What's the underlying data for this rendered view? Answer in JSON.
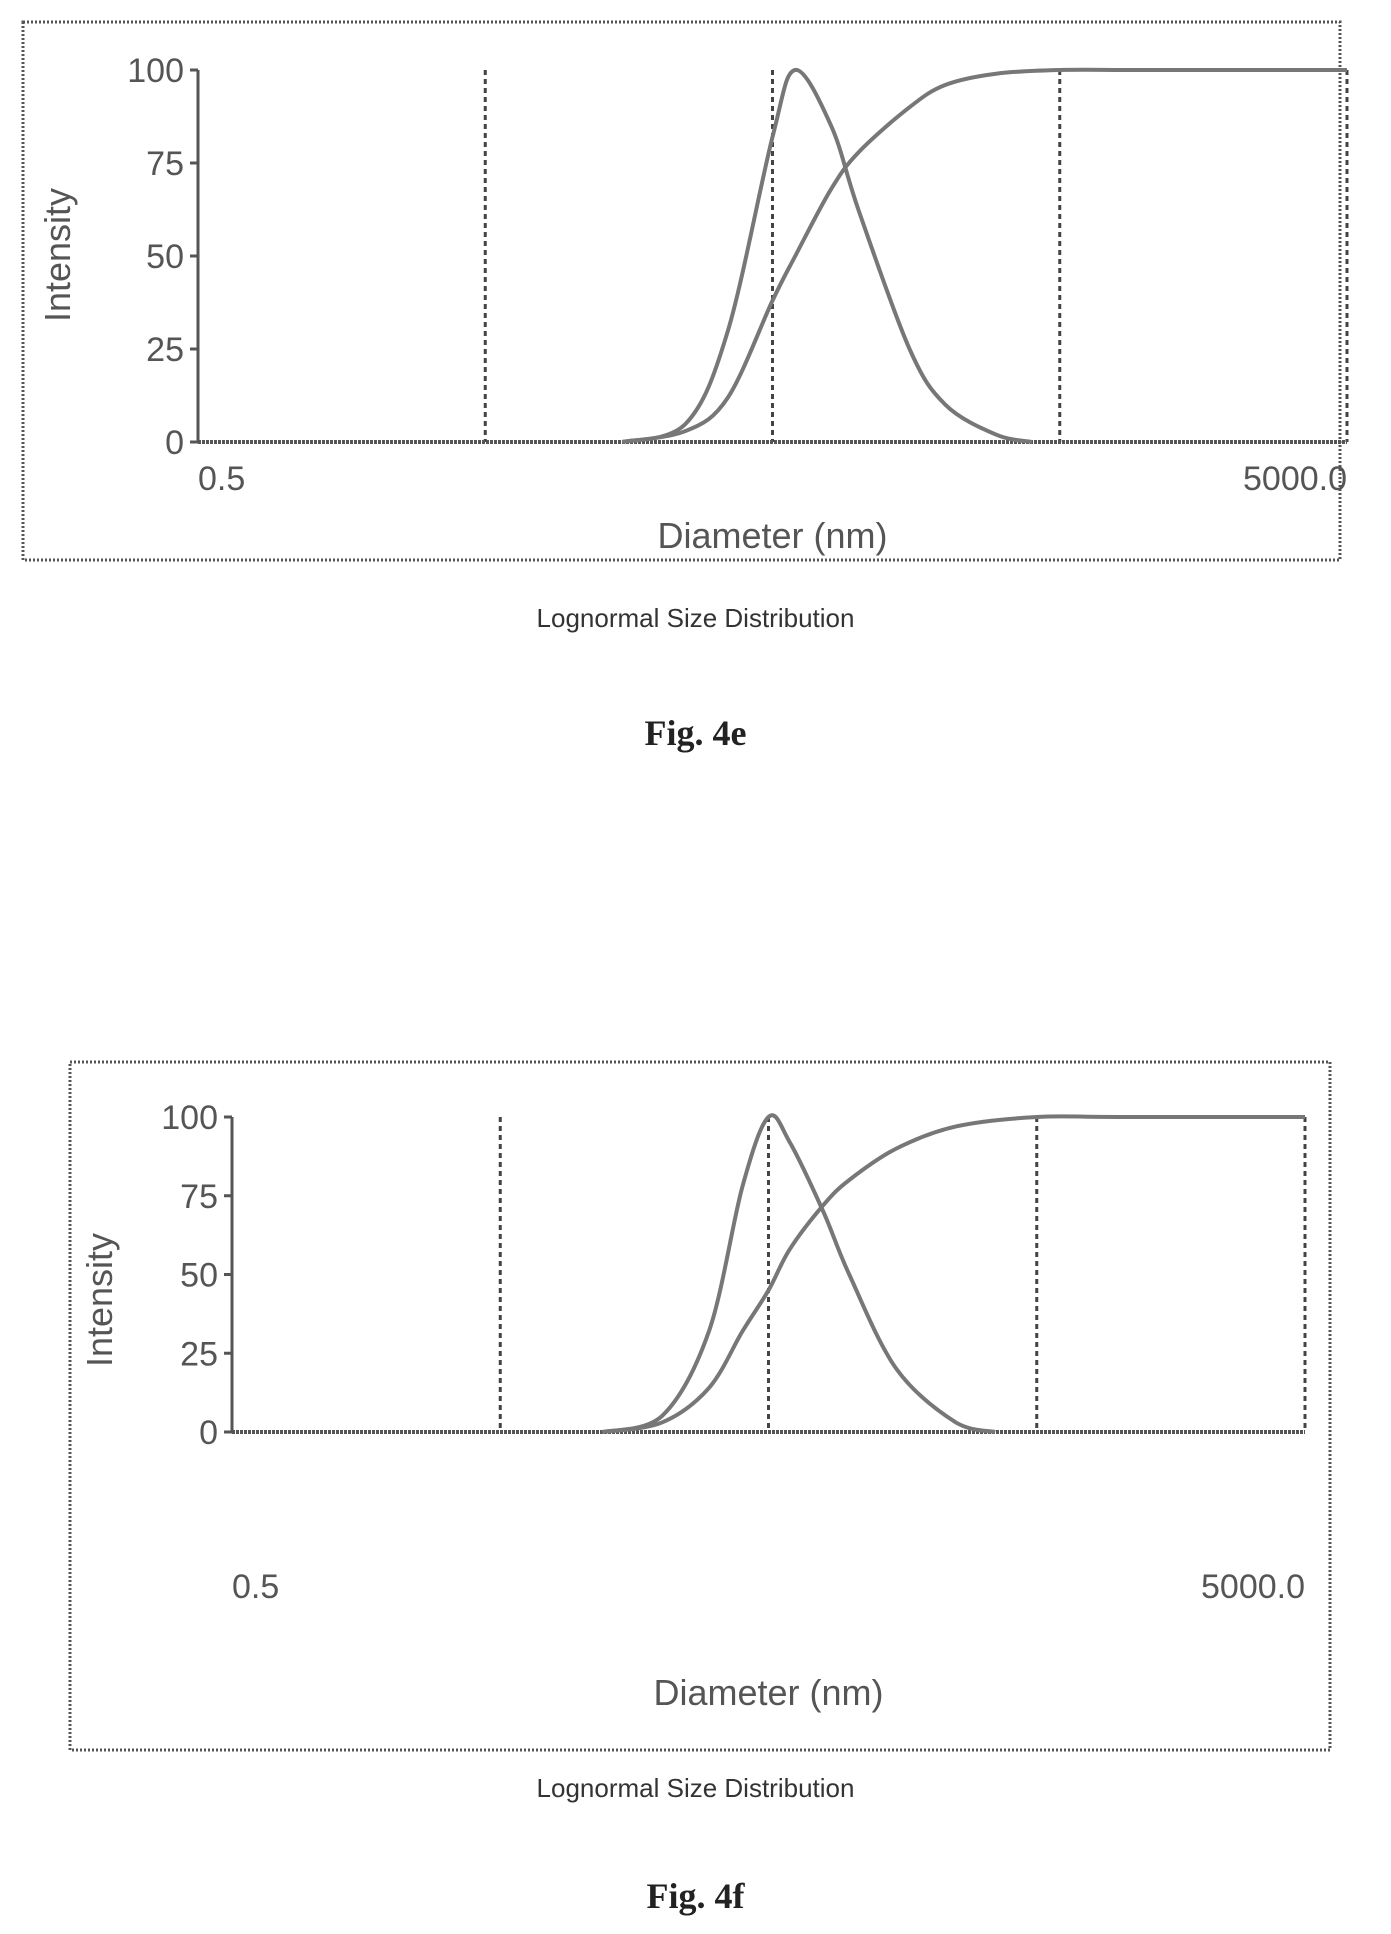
{
  "figures": [
    {
      "caption": "Fig. 4e",
      "subtitle": "Lognormal Size Distribution"
    },
    {
      "caption": "Fig. 4f",
      "subtitle": "Lognormal Size Distribution"
    }
  ],
  "chart_data": [
    {
      "type": "line",
      "xlabel": "Diameter (nm)",
      "ylabel": "Intensity",
      "x_scale": "log",
      "xlim": [
        0.5,
        5000.0
      ],
      "ylim": [
        0,
        100
      ],
      "x_tick_labels": [
        "0.5",
        "5000.0"
      ],
      "y_ticks": [
        0,
        25,
        50,
        75,
        100
      ],
      "y_tick_labels": [
        "0",
        "25",
        "50",
        "75",
        "100"
      ],
      "gridlines_x": [
        5,
        50,
        500,
        5000
      ],
      "grid": true,
      "series": [
        {
          "x": [
            15,
            25,
            35,
            50,
            60,
            80,
            100,
            150,
            200,
            300,
            400
          ],
          "y": [
            0,
            5,
            30,
            82,
            100,
            85,
            62,
            25,
            10,
            2,
            0
          ]
        },
        {
          "x": [
            15,
            25,
            35,
            50,
            60,
            80,
            100,
            150,
            200,
            300,
            500,
            1000,
            5000
          ],
          "y": [
            0,
            3,
            12,
            38,
            50,
            68,
            78,
            90,
            96,
            99,
            100,
            100,
            100
          ]
        }
      ]
    },
    {
      "type": "line",
      "xlabel": "Diameter (nm)",
      "ylabel": "Intensity",
      "x_scale": "log",
      "xlim": [
        0.5,
        5000.0
      ],
      "ylim": [
        0,
        100
      ],
      "x_tick_labels": [
        "0.5",
        "5000.0"
      ],
      "y_ticks": [
        0,
        25,
        50,
        75,
        100
      ],
      "y_tick_labels": [
        "0",
        "25",
        "50",
        "75",
        "100"
      ],
      "gridlines_x": [
        5,
        50,
        500,
        5000
      ],
      "grid": true,
      "series": [
        {
          "x": [
            12,
            20,
            30,
            40,
            50,
            60,
            80,
            100,
            150,
            250,
            350
          ],
          "y": [
            0,
            5,
            32,
            78,
            100,
            92,
            70,
            50,
            20,
            3,
            0
          ]
        },
        {
          "x": [
            12,
            20,
            30,
            40,
            50,
            60,
            80,
            100,
            150,
            250,
            500,
            1000,
            5000
          ],
          "y": [
            0,
            3,
            14,
            32,
            45,
            58,
            72,
            80,
            90,
            97,
            100,
            100,
            100
          ]
        }
      ]
    }
  ]
}
